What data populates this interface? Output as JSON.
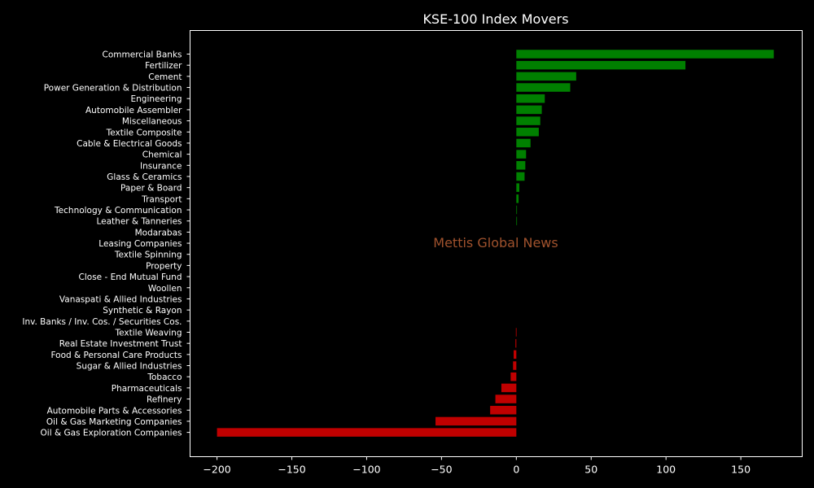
{
  "chart_data": {
    "type": "bar",
    "orientation": "horizontal",
    "title": "KSE-100 Index Movers",
    "watermark": "Mettis Global News",
    "xlim": [
      -218,
      191
    ],
    "xticks": [
      -200,
      -150,
      -100,
      -50,
      0,
      50,
      100,
      150
    ],
    "xtick_labels": [
      "−200",
      "−150",
      "−100",
      "−50",
      "0",
      "50",
      "100",
      "150"
    ],
    "grid": false,
    "positive_color": "#008000",
    "negative_color": "#c00000",
    "categories": [
      "Commercial Banks",
      "Fertilizer",
      "Cement",
      "Power Generation & Distribution",
      "Engineering",
      "Automobile Assembler",
      "Miscellaneous",
      "Textile Composite",
      "Cable & Electrical Goods",
      "Chemical",
      "Insurance",
      "Glass & Ceramics",
      "Paper & Board",
      "Transport",
      "Technology & Communication",
      "Leather & Tanneries",
      "Modarabas",
      "Leasing Companies",
      "Textile Spinning",
      "Property",
      "Close - End Mutual Fund",
      "Woollen",
      "Vanaspati & Allied Industries",
      "Synthetic & Rayon",
      "Inv. Banks / Inv. Cos. / Securities Cos.",
      "Textile Weaving",
      "Real Estate Investment Trust",
      "Food & Personal Care Products",
      "Sugar & Allied Industries",
      "Tobacco",
      "Pharmaceuticals",
      "Refinery",
      "Automobile Parts & Accessories",
      "Oil & Gas Marketing Companies",
      "Oil & Gas Exploration Companies"
    ],
    "values": [
      172,
      113,
      40,
      36,
      19,
      17,
      16,
      15,
      9.5,
      6.5,
      6,
      5.5,
      2,
      1.5,
      0.4,
      0.3,
      0,
      0,
      0,
      0,
      0,
      0,
      0,
      0,
      0,
      -0.3,
      -0.6,
      -1.8,
      -2.2,
      -3.8,
      -10,
      -14,
      -17.5,
      -54,
      -200
    ]
  }
}
